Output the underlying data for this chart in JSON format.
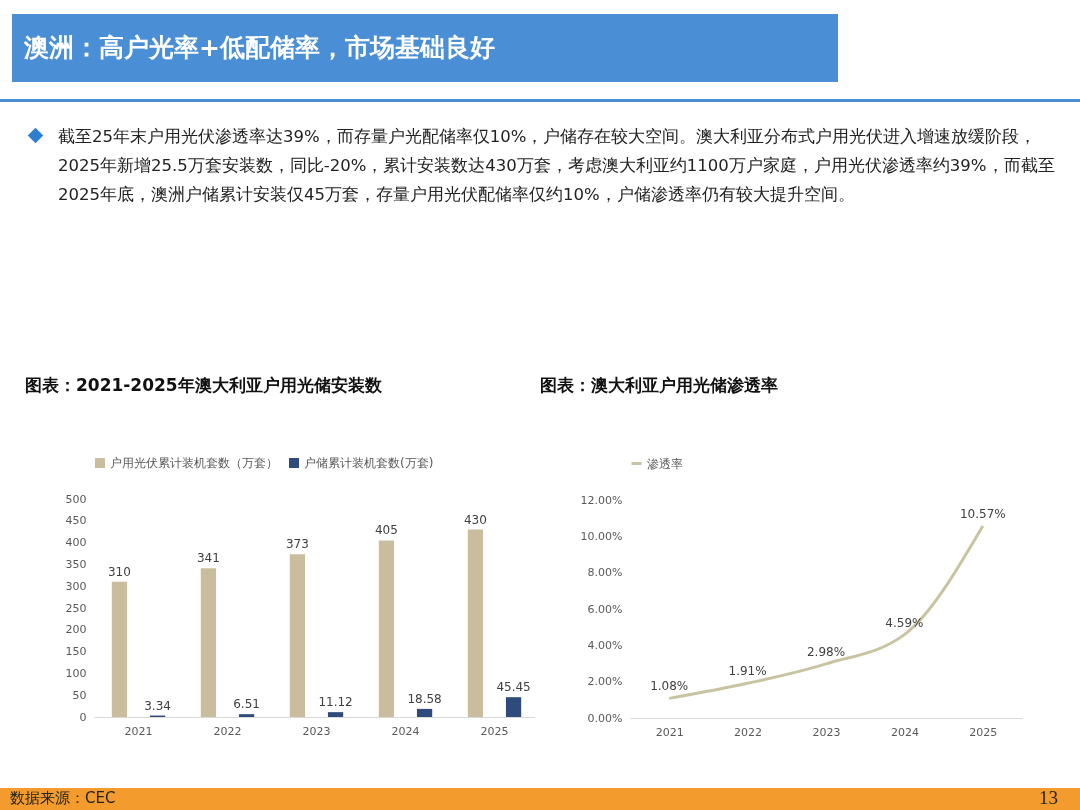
{
  "chart_data": [
    {
      "type": "other",
      "title": "澳洲：高户光率+低配储率，市场基础良好",
      "annotations": [
        "截至25年末户用光伏渗透率达39%，而存量户光配储率仅10%，户储存在较大空间。澳大利亚分布式户用光伏进入增速放缓阶段，2025年新增25.5万套安装数，同比-20%，累计安装数达430万套，考虑澳大利亚约1100万户家庭，户用光伏渗透率约39%，而截至2025年底，澳洲户储累计安装仅45万套，存量户用光伏配储率仅约10%，户储渗透率仍有较大提升空间。",
        "数据来源：CEC",
        "13"
      ]
    },
    {
      "type": "bar",
      "title": "图表：2021-2025年澳大利亚户用光储安装数",
      "categories": [
        "2021",
        "2022",
        "2023",
        "2024",
        "2025"
      ],
      "series": [
        {
          "name": "户用光伏累计装机套数（万套）",
          "color": "#c9bd9e",
          "values": [
            310,
            341,
            373,
            405,
            430
          ]
        },
        {
          "name": "户储累计装机套数(万套)",
          "color": "#2f4b7c",
          "values": [
            3.34,
            6.51,
            11.12,
            18.58,
            45.45
          ]
        }
      ],
      "ylim": [
        0,
        500
      ],
      "yticks": [
        0,
        50,
        100,
        150,
        200,
        250,
        300,
        350,
        400,
        450,
        500
      ],
      "data_labels": true,
      "legend": "top"
    },
    {
      "type": "line",
      "title": "图表：澳大利亚户用光储渗透率",
      "categories": [
        "2021",
        "2022",
        "2023",
        "2024",
        "2025"
      ],
      "series": [
        {
          "name": "渗透率",
          "color": "#c8c4a2",
          "values": [
            1.08,
            1.91,
            2.98,
            4.59,
            10.57
          ],
          "value_labels": [
            "1.08%",
            "1.91%",
            "2.98%",
            "4.59%",
            "10.57%"
          ]
        }
      ],
      "ylim": [
        0,
        12
      ],
      "yticks": [
        {
          "value": 0,
          "label": "0.00%"
        },
        {
          "value": 2,
          "label": "2.00%"
        },
        {
          "value": 4,
          "label": "4.00%"
        },
        {
          "value": 6,
          "label": "6.00%"
        },
        {
          "value": 8,
          "label": "8.00%"
        },
        {
          "value": 10,
          "label": "10.00%"
        },
        {
          "value": 12,
          "label": "12.00%"
        }
      ],
      "legend": "top"
    }
  ]
}
